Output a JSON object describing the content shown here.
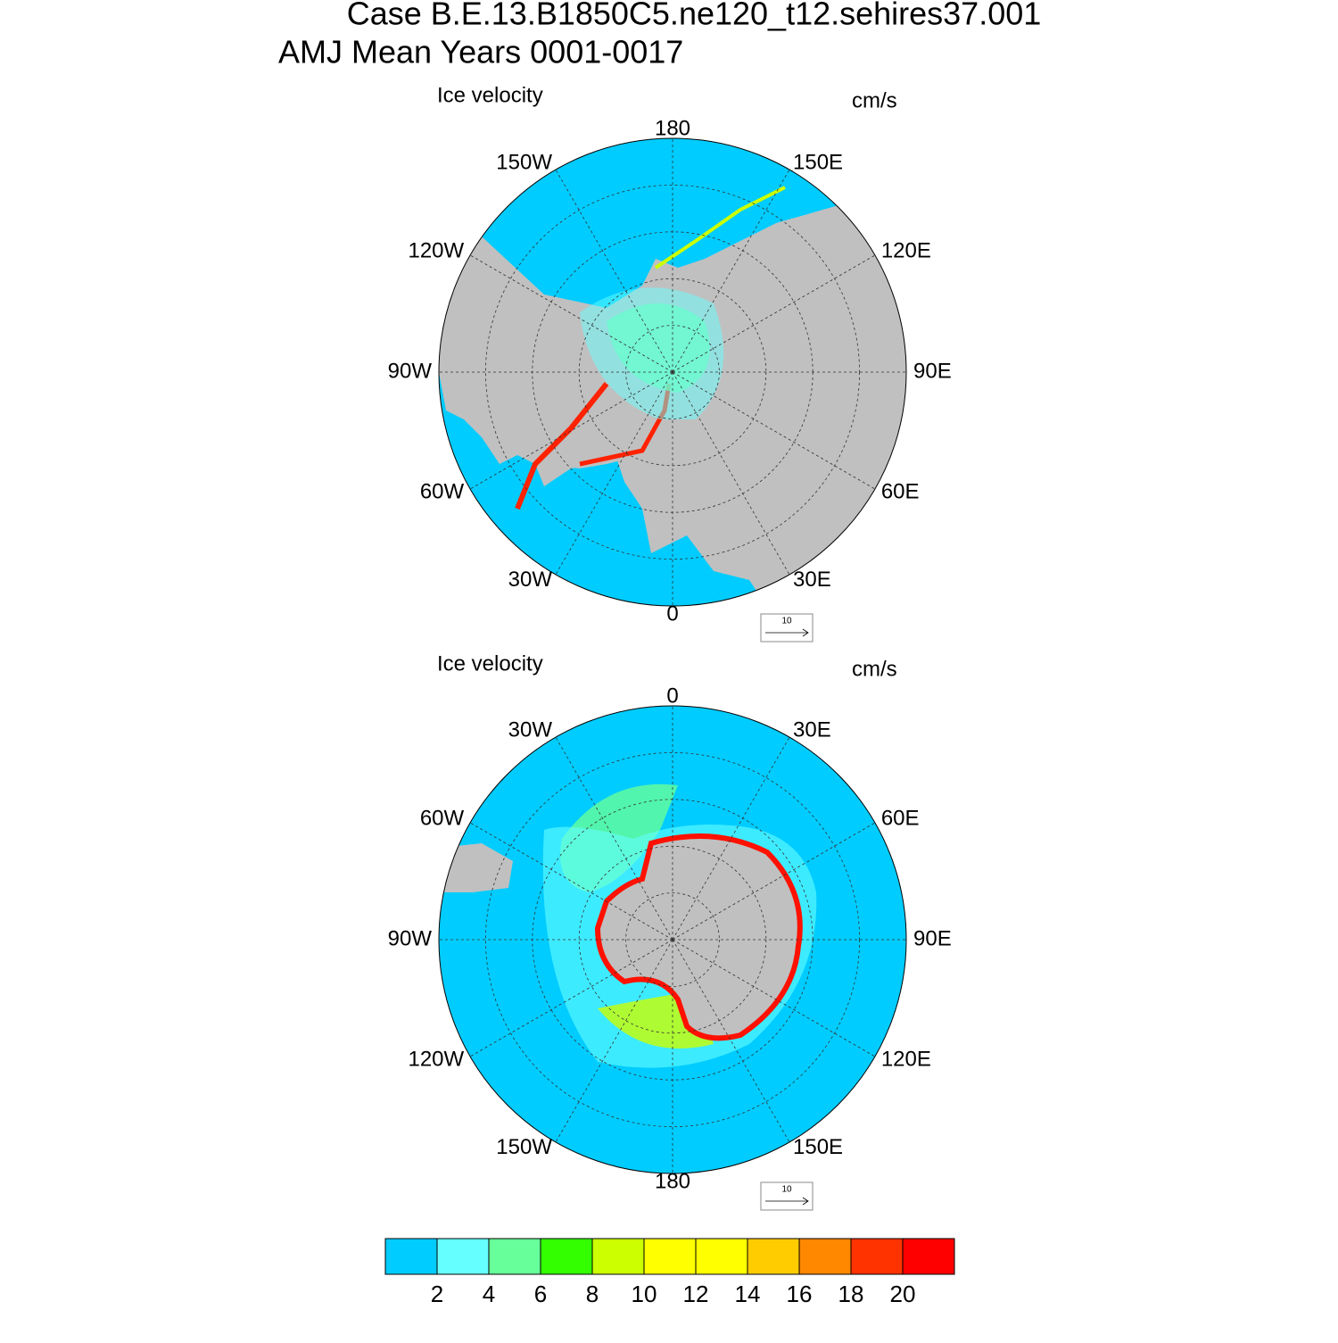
{
  "header": {
    "title": [
      "Case B.E.13.B1850C5.ne120_t12.sehires37.001",
      "AMJ Mean   Years 0001-0017"
    ]
  },
  "panels": [
    {
      "title": "Ice velocity",
      "units": "cm/s",
      "lon_labels": [
        "180",
        "150E",
        "120E",
        "90E",
        "60E",
        "30E",
        "0",
        "30W",
        "60W",
        "90W",
        "120W",
        "150W"
      ],
      "ref_vector": "10"
    },
    {
      "title": "Ice velocity",
      "units": "cm/s",
      "lon_labels": [
        "0",
        "30E",
        "60E",
        "90E",
        "120E",
        "150E",
        "180",
        "150W",
        "120W",
        "90W",
        "60W",
        "30W"
      ],
      "ref_vector": "10"
    }
  ],
  "colorbar": {
    "colors": [
      "#00ccff",
      "#66ffff",
      "#66ff99",
      "#33ff00",
      "#ccff00",
      "#ffff00",
      "#ffff00",
      "#ffcc00",
      "#ff8800",
      "#ff3300",
      "#ff0000"
    ],
    "labels": [
      2,
      4,
      6,
      8,
      10,
      12,
      14,
      16,
      18,
      20
    ]
  }
}
